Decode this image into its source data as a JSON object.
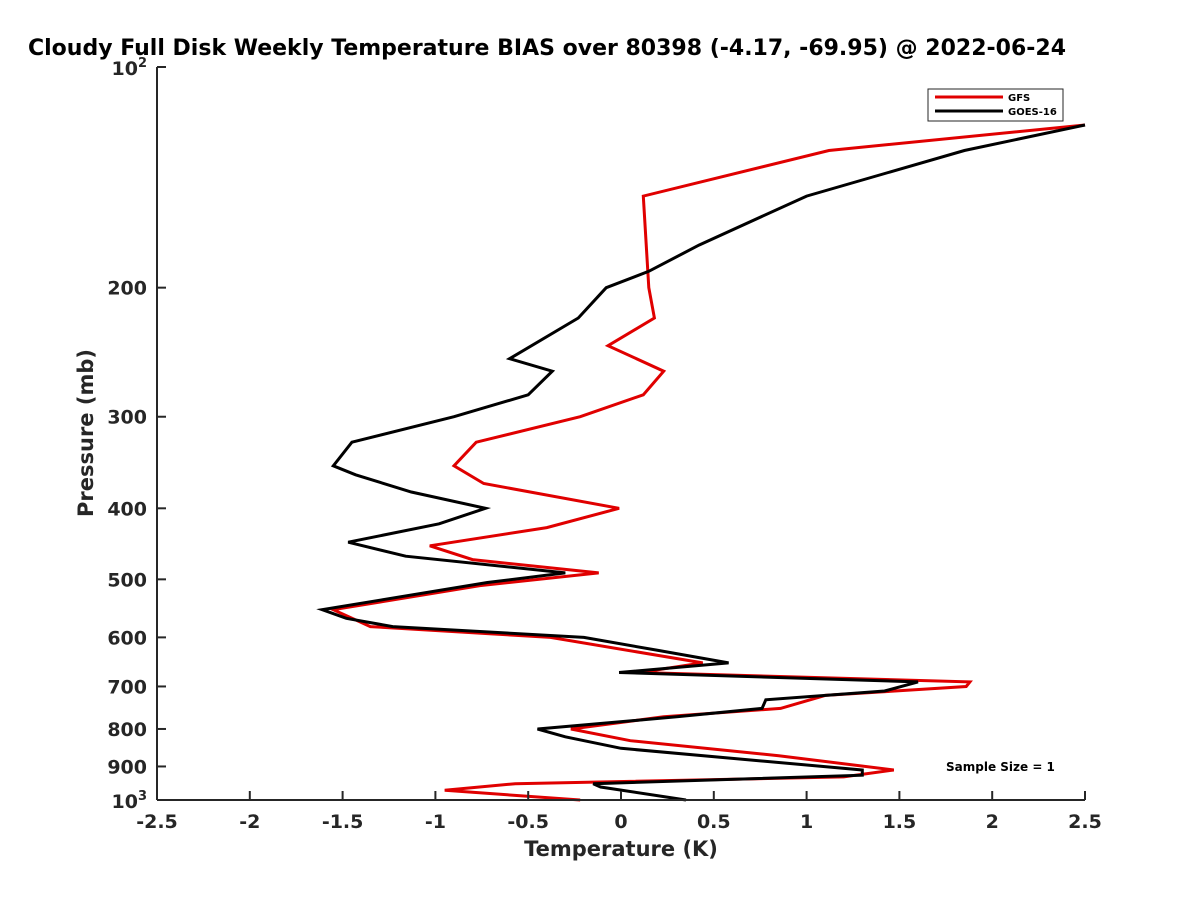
{
  "chart_data": {
    "type": "line",
    "title": "Cloudy Full Disk Weekly Temperature BIAS over 80398 (-4.17, -69.95) @ 2022-06-24",
    "xlabel": "Temperature (K)",
    "ylabel": "Pressure (mb)",
    "xlim": [
      -2.5,
      2.5
    ],
    "ylim": [
      100,
      1000
    ],
    "y_scale": "log",
    "y_reversed": true,
    "grid": false,
    "legend_position": "top-right",
    "x_ticks": [
      -2.5,
      -2,
      -1.5,
      -1,
      -0.5,
      0,
      0.5,
      1,
      1.5,
      2,
      2.5
    ],
    "x_tick_labels": [
      "-2.5",
      "-2",
      "-1.5",
      "-1",
      "-0.5",
      "0",
      "0.5",
      "1",
      "1.5",
      "2",
      "2.5"
    ],
    "y_ticks": [
      200,
      300,
      400,
      500,
      600,
      700,
      800,
      900
    ],
    "y_tick_labels": [
      "200",
      "300",
      "400",
      "500",
      "600",
      "700",
      "800",
      "900"
    ],
    "y_top_label": {
      "base": "10",
      "exp": "2"
    },
    "y_bottom_label": {
      "base": "10",
      "exp": "3"
    },
    "annotation": "Sample Size = 1",
    "series": [
      {
        "name": "GFS",
        "color": "#e00000",
        "points": [
          [
            2.5,
            120
          ],
          [
            1.12,
            130
          ],
          [
            0.12,
            150
          ],
          [
            0.15,
            200
          ],
          [
            0.18,
            220
          ],
          [
            -0.07,
            240
          ],
          [
            0.23,
            260
          ],
          [
            0.12,
            280
          ],
          [
            -0.22,
            300
          ],
          [
            -0.78,
            325
          ],
          [
            -0.9,
            350
          ],
          [
            -0.74,
            370
          ],
          [
            -0.01,
            400
          ],
          [
            -0.4,
            425
          ],
          [
            -1.03,
            450
          ],
          [
            -0.8,
            470
          ],
          [
            -0.12,
            490
          ],
          [
            -0.76,
            510
          ],
          [
            -1.55,
            550
          ],
          [
            -1.35,
            580
          ],
          [
            -0.38,
            600
          ],
          [
            0.44,
            650
          ],
          [
            0.1,
            670
          ],
          [
            1.88,
            690
          ],
          [
            1.86,
            700
          ],
          [
            1.1,
            720
          ],
          [
            0.86,
            750
          ],
          [
            0.23,
            770
          ],
          [
            -0.27,
            800
          ],
          [
            0.05,
            830
          ],
          [
            0.85,
            870
          ],
          [
            1.47,
            910
          ],
          [
            1.2,
            930
          ],
          [
            -0.57,
            950
          ],
          [
            -0.95,
            970
          ],
          [
            -0.22,
            1000
          ]
        ]
      },
      {
        "name": "GOES-16",
        "color": "#000000",
        "points": [
          [
            2.5,
            120
          ],
          [
            1.85,
            130
          ],
          [
            1.0,
            150
          ],
          [
            0.42,
            175
          ],
          [
            0.15,
            190
          ],
          [
            -0.08,
            200
          ],
          [
            -0.23,
            220
          ],
          [
            -0.6,
            250
          ],
          [
            -0.37,
            260
          ],
          [
            -0.5,
            280
          ],
          [
            -0.9,
            300
          ],
          [
            -1.45,
            325
          ],
          [
            -1.55,
            350
          ],
          [
            -1.43,
            360
          ],
          [
            -1.13,
            380
          ],
          [
            -0.73,
            400
          ],
          [
            -0.98,
            420
          ],
          [
            -1.47,
            445
          ],
          [
            -1.16,
            465
          ],
          [
            -0.3,
            490
          ],
          [
            -0.72,
            505
          ],
          [
            -1.61,
            550
          ],
          [
            -1.48,
            565
          ],
          [
            -1.23,
            580
          ],
          [
            -0.2,
            600
          ],
          [
            0.2,
            625
          ],
          [
            0.58,
            650
          ],
          [
            -0.01,
            670
          ],
          [
            1.6,
            690
          ],
          [
            1.42,
            710
          ],
          [
            0.78,
            730
          ],
          [
            0.76,
            750
          ],
          [
            0.3,
            770
          ],
          [
            0.05,
            780
          ],
          [
            -0.45,
            800
          ],
          [
            -0.3,
            820
          ],
          [
            0.0,
            850
          ],
          [
            1.3,
            910
          ],
          [
            1.3,
            925
          ],
          [
            -0.15,
            950
          ],
          [
            -0.11,
            960
          ],
          [
            0.35,
            1000
          ]
        ]
      }
    ]
  }
}
